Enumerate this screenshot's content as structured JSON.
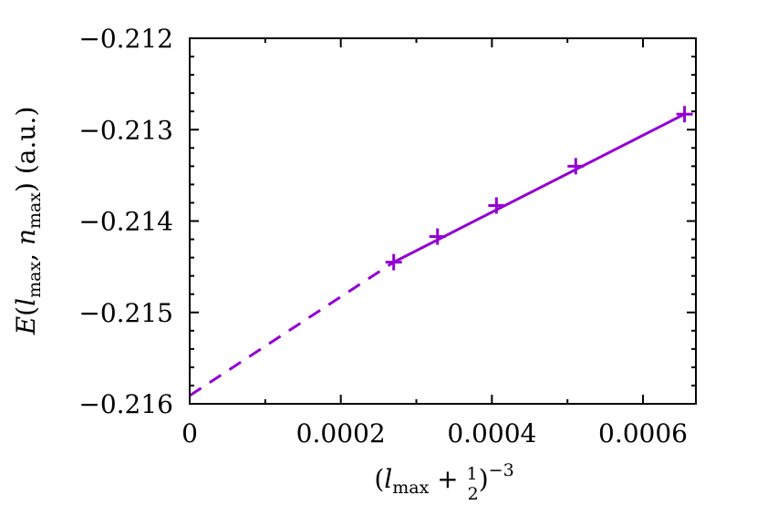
{
  "chart_data": {
    "type": "line",
    "xlabel": "(l_max + 1/2)^-3",
    "ylabel": "E(l_max, n_max) (a.u.)",
    "xlim": [
      0,
      0.00067
    ],
    "ylim": [
      -0.216,
      -0.212
    ],
    "x_ticks": [
      0,
      0.0002,
      0.0004,
      0.0006
    ],
    "x_tick_labels": [
      "0",
      "0.0002",
      "0.0004",
      "0.0006"
    ],
    "y_ticks": [
      -0.212,
      -0.213,
      -0.214,
      -0.215,
      -0.216
    ],
    "y_tick_labels": [
      "−0.212",
      "−0.213",
      "−0.214",
      "−0.215",
      "−0.216"
    ],
    "grid": false,
    "color": "#9400d3",
    "series": [
      {
        "style": "points-plus",
        "x": [
          0.00027,
          0.000328,
          0.000406,
          0.000511,
          0.000655
        ],
        "y": [
          -0.21445,
          -0.21417,
          -0.21383,
          -0.2134,
          -0.21283
        ]
      },
      {
        "style": "solid-line",
        "x": [
          0.00027,
          0.000655
        ],
        "y": [
          -0.21445,
          -0.21283
        ]
      },
      {
        "style": "dashed-line",
        "x": [
          0,
          0.00027
        ],
        "y": [
          -0.21591,
          -0.21445
        ]
      }
    ]
  }
}
